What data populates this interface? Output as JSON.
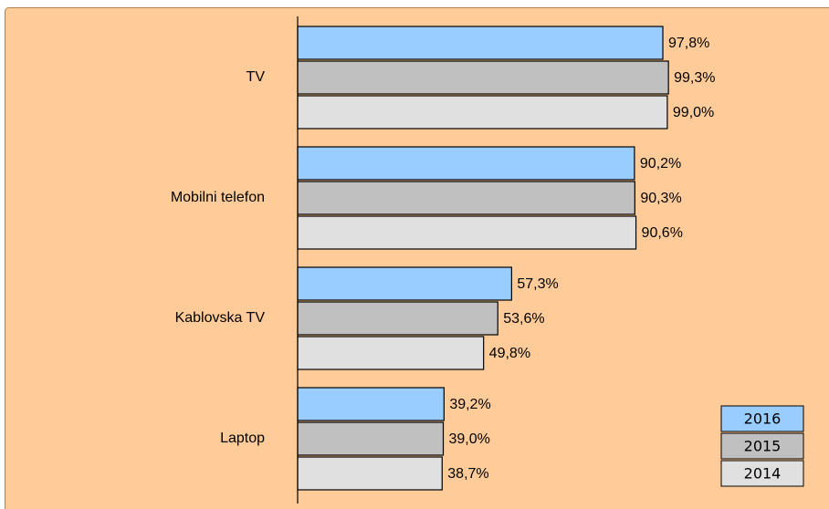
{
  "chart_data": {
    "type": "bar",
    "orientation": "horizontal",
    "categories": [
      "TV",
      "Mobilni telefon",
      "Kablovska TV",
      "Laptop"
    ],
    "series": [
      {
        "name": "2016",
        "color": "#99ccff",
        "values": [
          97.8,
          90.2,
          57.3,
          39.2
        ],
        "value_labels": [
          "97,8%",
          "90,2%",
          "57,3%",
          "39,2%"
        ]
      },
      {
        "name": "2015",
        "color": "#c0c0c0",
        "values": [
          99.3,
          90.3,
          53.6,
          39.0
        ],
        "value_labels": [
          "99,3%",
          "90,3%",
          "53,6%",
          "39,0%"
        ]
      },
      {
        "name": "2014",
        "color": "#e0e0e0",
        "values": [
          99.0,
          90.6,
          49.8,
          38.7
        ],
        "value_labels": [
          "99,0%",
          "90,6%",
          "49,8%",
          "38,7%"
        ]
      }
    ],
    "xlim": [
      0,
      100
    ],
    "legend": "bottom-right"
  }
}
